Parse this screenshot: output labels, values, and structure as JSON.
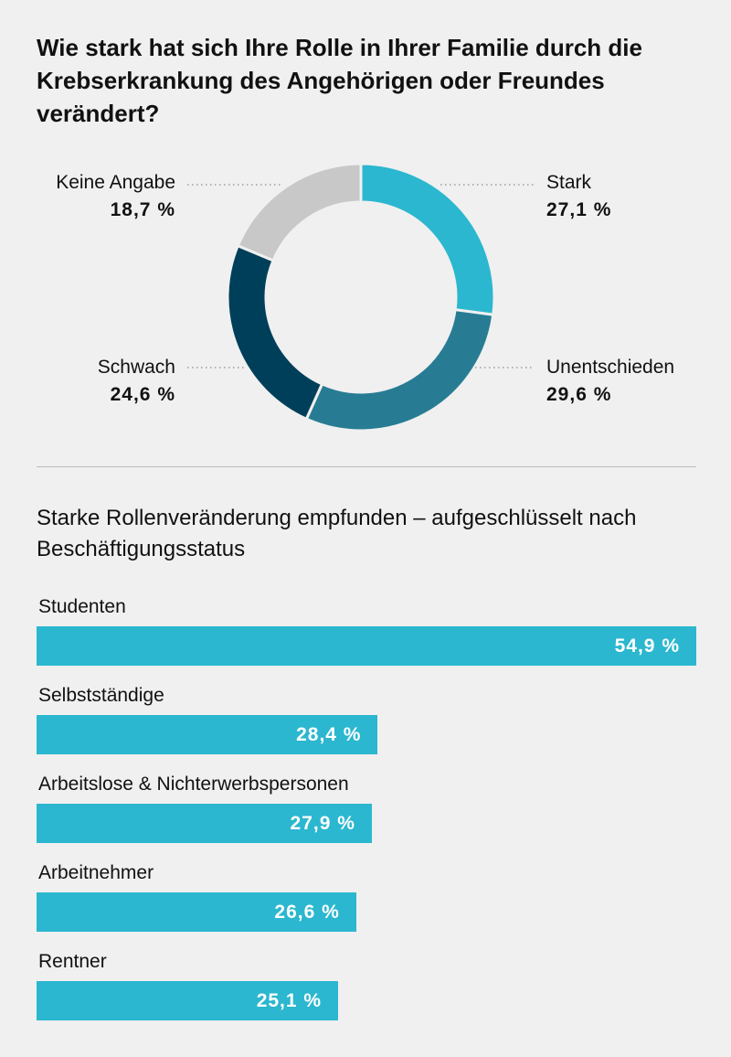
{
  "title": "Wie stark hat sich Ihre Rolle in Ihrer Familie durch die Krebserkrankung des Angehörigen oder Freundes verändert?",
  "subtitle": "Starke Rollenveränderung empfunden – aufgeschlüsselt nach Beschäftigungsstatus",
  "chart_data": [
    {
      "type": "pie",
      "title": "Wie stark hat sich Ihre Rolle in Ihrer Familie durch die Krebserkrankung des Angehörigen oder Freundes verändert?",
      "categories": [
        "Stark",
        "Unentschieden",
        "Schwach",
        "Keine Angabe"
      ],
      "values": [
        27.1,
        29.6,
        24.6,
        18.7
      ],
      "value_labels": [
        "27,1 %",
        "29,6 %",
        "24,6 %",
        "18,7 %"
      ],
      "colors": [
        "#2bb7cf",
        "#277c94",
        "#003f5a",
        "#c8c8c8"
      ],
      "style": "donut"
    },
    {
      "type": "bar",
      "orientation": "horizontal",
      "title": "Starke Rollenveränderung empfunden – aufgeschlüsselt nach Beschäftigungsstatus",
      "categories": [
        "Studenten",
        "Selbstständige",
        "Arbeitslose & Nichterwerbspersonen",
        "Arbeitnehmer",
        "Rentner"
      ],
      "values": [
        54.9,
        28.4,
        27.9,
        26.6,
        25.1
      ],
      "value_labels": [
        "54,9 %",
        "28,4 %",
        "27,9 %",
        "26,6 %",
        "25,1 %"
      ],
      "color": "#2bb7cf",
      "xlim": [
        0,
        54.9
      ]
    }
  ]
}
